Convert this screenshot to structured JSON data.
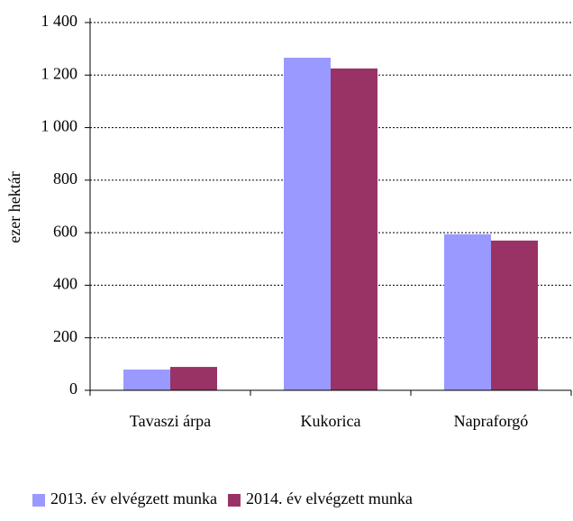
{
  "chart_data": {
    "type": "bar",
    "y_label": "ezer hektár",
    "categories": [
      "Tavaszi árpa",
      "Kukorica",
      "Napraforgó"
    ],
    "series": [
      {
        "name": "2013. év elvégzett munka",
        "color": "#9999ff",
        "values": [
          79,
          1266,
          594
        ]
      },
      {
        "name": "2014. év elvégzett munka",
        "color": "#993366",
        "values": [
          89,
          1225,
          570
        ]
      }
    ],
    "ylim": [
      0,
      1400
    ],
    "yticks": [
      0,
      200,
      400,
      600,
      800,
      {
        "value": 1000,
        "label": "1 000"
      },
      {
        "value": 1200,
        "label": "1 200"
      },
      {
        "value": 1400,
        "label": "1 400"
      }
    ],
    "grid": true,
    "legend": "bottom"
  }
}
